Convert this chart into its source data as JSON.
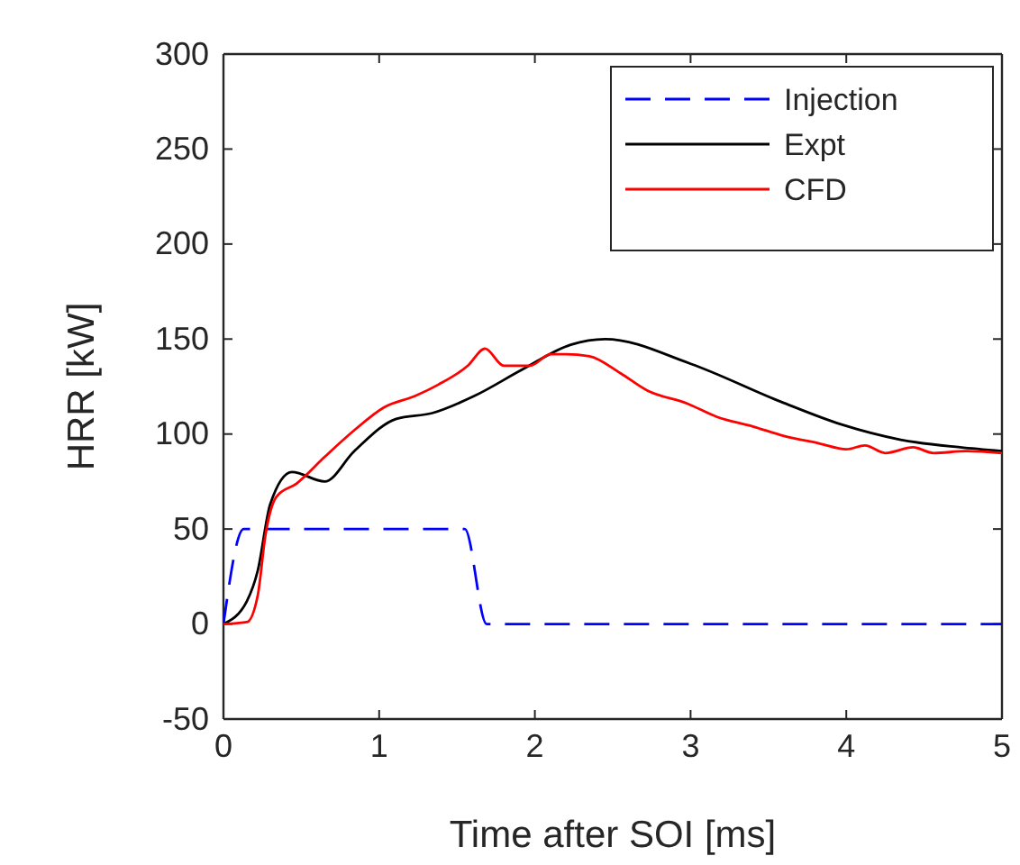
{
  "chart_data": {
    "type": "line",
    "xlabel": "Time after SOI [ms]",
    "ylabel": "HRR [kW]",
    "xlim": [
      0,
      5
    ],
    "xticks": [
      0,
      1,
      2,
      3,
      4,
      5
    ],
    "ylim": [
      -50,
      300
    ],
    "yticks": [
      -50,
      0,
      50,
      100,
      150,
      200,
      250,
      300
    ],
    "grid": false,
    "legend": "top right",
    "series": [
      {
        "name": "Injection",
        "color": "#0000ff",
        "line_style": "dashed",
        "x": [
          0,
          0.13,
          1.55,
          1.69,
          5
        ],
        "values": [
          0,
          50,
          50,
          0,
          0
        ]
      },
      {
        "name": "Expt",
        "color": "#000000",
        "line_style": "solid",
        "x": [
          0,
          0.15,
          0.22,
          0.3,
          0.44,
          0.65,
          0.84,
          1.11,
          1.34,
          1.61,
          1.92,
          2.23,
          2.45,
          3.0,
          3.58,
          3.97,
          4.35,
          4.73,
          5.0
        ],
        "values": [
          0,
          12,
          28,
          63,
          80,
          75,
          91,
          108,
          111,
          120,
          134,
          147,
          150,
          137,
          117,
          105,
          97,
          93,
          91
        ]
      },
      {
        "name": "CFD",
        "color": "#ff0000",
        "line_style": "solid",
        "x": [
          0,
          0.15,
          0.22,
          0.27,
          0.34,
          0.47,
          0.65,
          0.84,
          1.03,
          1.23,
          1.38,
          1.57,
          1.68,
          1.8,
          1.97,
          2.1,
          2.2,
          2.35,
          2.55,
          2.72,
          2.98,
          3.17,
          3.4,
          3.6,
          3.83,
          4.0,
          4.12,
          4.25,
          4.43,
          4.56,
          4.77,
          5.0
        ],
        "values": [
          0,
          1,
          15,
          47,
          67,
          74,
          88,
          102,
          114,
          120,
          126,
          136,
          145,
          136,
          136,
          142,
          142,
          141,
          132,
          123,
          116,
          109,
          104,
          99,
          95,
          92,
          94,
          90,
          93,
          90,
          91,
          90
        ]
      }
    ]
  }
}
